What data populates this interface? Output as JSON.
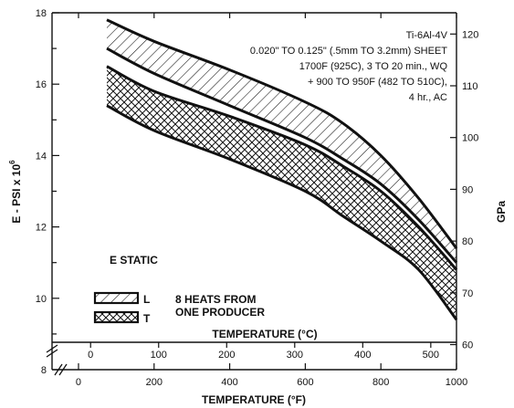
{
  "chart_data": {
    "type": "area",
    "annotation": {
      "lines": [
        "Ti-6Al-4V",
        "0.020\" TO 0.125\" (.5mm TO 3.2mm) SHEET",
        "1700F (925C), 3 TO 20 min., WQ",
        "+ 900 TO 950F (482 TO 510C),",
        "4 hr., AC"
      ]
    },
    "condition_label": "E STATIC",
    "heats_note": [
      "8 HEATS FROM",
      "ONE PRODUCER"
    ],
    "legend": [
      {
        "name": "L",
        "pattern": "single-hatch"
      },
      {
        "name": "T",
        "pattern": "cross-hatch"
      }
    ],
    "x_axis": {
      "label": "TEMPERATURE (°F)",
      "ticks": [
        0,
        200,
        400,
        600,
        800,
        1000
      ],
      "range": [
        -70,
        1000
      ]
    },
    "x_axis_secondary": {
      "label": "TEMPERATURE (°C)",
      "ticks": [
        0,
        100,
        200,
        300,
        400,
        500
      ]
    },
    "y_axis_left": {
      "label": "E - PSI x 10",
      "label_exponent": "6",
      "ticks": [
        8,
        10,
        12,
        14,
        16,
        18
      ],
      "range": [
        8,
        18
      ]
    },
    "y_axis_right": {
      "label": "GPa",
      "ticks": [
        60,
        70,
        80,
        90,
        100,
        110,
        120
      ]
    },
    "bands": [
      {
        "name": "L",
        "pattern": "single-hatch",
        "upper": {
          "x": [
            75,
            200,
            400,
            600,
            700,
            800,
            900,
            1000
          ],
          "y": [
            17.8,
            17.2,
            16.4,
            15.5,
            14.9,
            14.0,
            12.8,
            11.4
          ]
        },
        "lower": {
          "x": [
            75,
            200,
            400,
            600,
            700,
            800,
            900,
            1000
          ],
          "y": [
            17.0,
            16.3,
            15.4,
            14.5,
            13.9,
            13.2,
            12.2,
            11.0
          ]
        }
      },
      {
        "name": "T",
        "pattern": "cross-hatch",
        "upper": {
          "x": [
            75,
            200,
            400,
            600,
            700,
            800,
            900,
            1000
          ],
          "y": [
            16.5,
            15.8,
            15.1,
            14.3,
            13.7,
            13.0,
            12.0,
            10.8
          ]
        },
        "lower": {
          "x": [
            75,
            200,
            400,
            600,
            700,
            800,
            900,
            1000
          ],
          "y": [
            15.4,
            14.7,
            13.9,
            13.0,
            12.3,
            11.6,
            10.8,
            9.4
          ]
        }
      }
    ]
  }
}
